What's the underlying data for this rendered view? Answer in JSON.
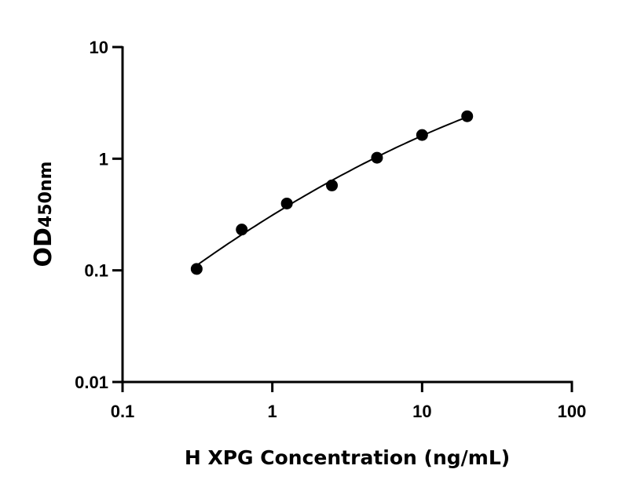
{
  "chart_data": {
    "type": "scatter",
    "xlabel": "H XPG Concentration (ng/mL)",
    "ylabel": "OD",
    "ylabel_subscript": "450nm",
    "x_scale": "log",
    "y_scale": "log",
    "xlim": [
      0.1,
      100
    ],
    "ylim": [
      0.01,
      10
    ],
    "x_ticks": [
      "0.1",
      "1",
      "10",
      "100"
    ],
    "y_ticks": [
      "0.01",
      "0.1",
      "1",
      "10"
    ],
    "grid": false,
    "fit_curve": true,
    "points": [
      {
        "x": 0.3125,
        "y": 0.103
      },
      {
        "x": 0.625,
        "y": 0.232
      },
      {
        "x": 1.25,
        "y": 0.397
      },
      {
        "x": 2.5,
        "y": 0.576
      },
      {
        "x": 5,
        "y": 1.02
      },
      {
        "x": 10,
        "y": 1.63
      },
      {
        "x": 20,
        "y": 2.4
      }
    ],
    "colors": {
      "marker": "#000000",
      "line": "#000000"
    }
  }
}
